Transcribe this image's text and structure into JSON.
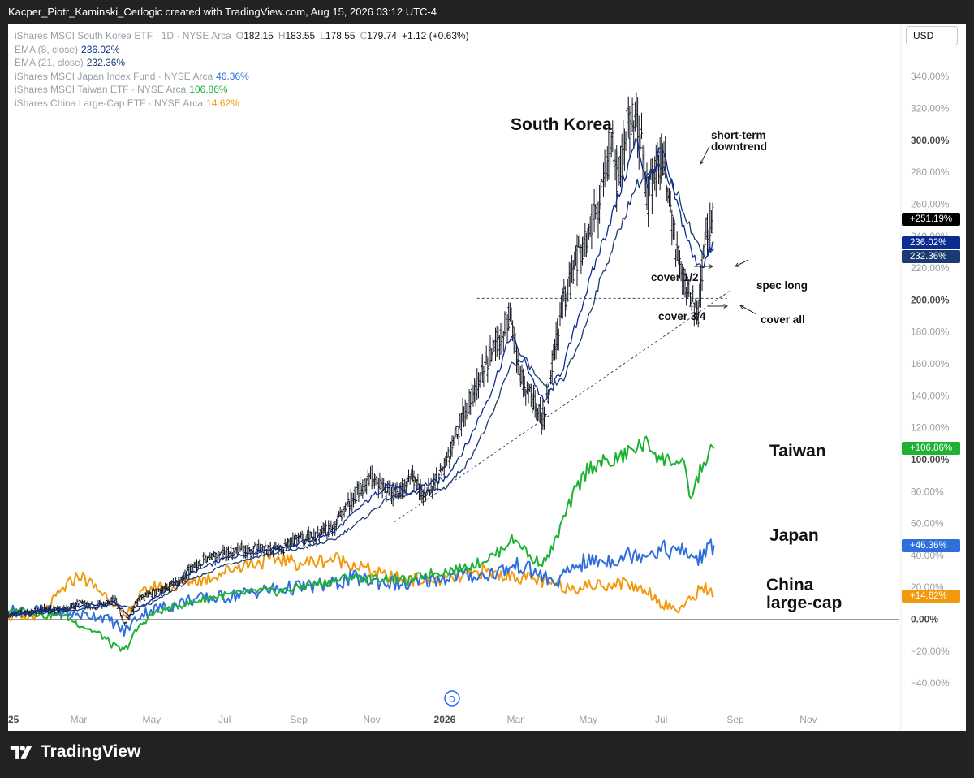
{
  "header": {
    "attribution": "Kacper_Piotr_Kaminski_Cerlogic created with TradingView.com, Aug 15, 2026 03:12 UTC-4"
  },
  "footer": {
    "brand": "TradingView"
  },
  "currency_button": "USD",
  "legend": [
    {
      "label": "iShares MSCI South Korea ETF · 1D · NYSE Arca",
      "ohlc": [
        [
          "O",
          "182.15"
        ],
        [
          "H",
          "183.55"
        ],
        [
          "L",
          "178.55"
        ],
        [
          "C",
          "179.74"
        ]
      ],
      "change": "+1.12 (+0.63%)",
      "color": "#131722"
    },
    {
      "label": "EMA (8, close)",
      "value": "236.02%",
      "color": "#0d2c8f"
    },
    {
      "label": "EMA (21, close)",
      "value": "232.36%",
      "color": "#1b3a73"
    },
    {
      "label": "iShares MSCI Japan Index Fund · NYSE Arca",
      "value": "46.36%",
      "color": "#2f6fdb"
    },
    {
      "label": "iShares MSCI Taiwan ETF · NYSE Arca",
      "value": "106.86%",
      "color": "#1db233"
    },
    {
      "label": "iShares China Large-Cap ETF · NYSE Arca",
      "value": "14.62%",
      "color": "#f29a0f"
    }
  ],
  "annotations": {
    "south_korea": "South Korea",
    "taiwan": "Taiwan",
    "japan": "Japan",
    "china_1": "China",
    "china_2": "large-cap",
    "short_term_1": "short-term",
    "short_term_2": "downtrend",
    "cover_half": "cover 1/2",
    "spec_long": "spec long",
    "cover_three_quarters": "cover 3/4",
    "cover_all": "cover all",
    "event_marker": "D"
  },
  "price_tags": [
    {
      "value": 251.19,
      "label": "+251.19%",
      "color": "#000000"
    },
    {
      "value": 236.02,
      "label": "236.02%",
      "color": "#0d2c8f"
    },
    {
      "value": 232.36,
      "label": "232.36%",
      "color": "#1b3a73"
    },
    {
      "value": 106.86,
      "label": "+106.86%",
      "color": "#1db233"
    },
    {
      "value": 46.36,
      "label": "+46.36%",
      "color": "#2f6fdb"
    },
    {
      "value": 14.62,
      "label": "+14.62%",
      "color": "#f29a0f"
    }
  ],
  "chart_data": {
    "type": "line",
    "y_unit": "% change",
    "ylim": [
      -45,
      350
    ],
    "y_ticks": [
      "340.00%",
      "320.00%",
      "300.00%",
      "280.00%",
      "260.00%",
      "240.00%",
      "220.00%",
      "200.00%",
      "180.00%",
      "160.00%",
      "140.00%",
      "120.00%",
      "100.00%",
      "80.00%",
      "60.00%",
      "40.00%",
      "20.00%",
      "0.00%",
      "−20.00%",
      "−40.00%"
    ],
    "y_tick_values": [
      340,
      320,
      300,
      280,
      260,
      240,
      220,
      200,
      180,
      160,
      140,
      120,
      100,
      80,
      60,
      40,
      20,
      0,
      -20,
      -40
    ],
    "x_ticks": [
      "2025",
      "Mar",
      "May",
      "Jul",
      "Sep",
      "Nov",
      "2026",
      "Mar",
      "May",
      "Jul",
      "Sep",
      "Nov"
    ],
    "x_tick_dates": [
      "2025-01-01",
      "2025-03-01",
      "2025-05-01",
      "2025-07-01",
      "2025-09-01",
      "2025-11-01",
      "2026-01-01",
      "2026-03-01",
      "2026-05-01",
      "2026-07-01",
      "2026-09-01",
      "2026-11-01"
    ],
    "x_tick_first_label": "'25",
    "x_range": [
      "2024-12-27",
      "2026-12-15"
    ],
    "series": [
      {
        "name": "iShares MSCI South Korea ETF",
        "style": "bars",
        "color": "#131722",
        "dates": [
          "2024-12-27",
          "2025-01-15",
          "2025-02-01",
          "2025-02-15",
          "2025-03-01",
          "2025-03-15",
          "2025-04-01",
          "2025-04-08",
          "2025-04-20",
          "2025-05-01",
          "2025-05-20",
          "2025-06-01",
          "2025-06-15",
          "2025-07-01",
          "2025-07-15",
          "2025-08-01",
          "2025-08-15",
          "2025-09-01",
          "2025-09-15",
          "2025-10-01",
          "2025-10-15",
          "2025-11-01",
          "2025-11-15",
          "2025-11-25",
          "2025-12-05",
          "2025-12-15",
          "2026-01-01",
          "2026-01-15",
          "2026-02-01",
          "2026-02-15",
          "2026-02-25",
          "2026-03-05",
          "2026-03-15",
          "2026-03-25",
          "2026-04-01",
          "2026-04-10",
          "2026-04-20",
          "2026-05-01",
          "2026-05-10",
          "2026-05-20",
          "2026-05-25",
          "2026-06-01",
          "2026-06-10",
          "2026-06-20",
          "2026-06-28",
          "2026-07-05",
          "2026-07-12",
          "2026-07-20",
          "2026-07-26",
          "2026-08-01",
          "2026-08-07",
          "2026-08-14"
        ],
        "values": [
          2,
          4,
          6,
          5,
          10,
          8,
          12,
          -3,
          12,
          16,
          22,
          30,
          38,
          41,
          44,
          44,
          43,
          50,
          52,
          58,
          75,
          88,
          78,
          80,
          88,
          76,
          95,
          125,
          152,
          175,
          192,
          150,
          140,
          125,
          160,
          198,
          222,
          240,
          262,
          300,
          275,
          305,
          322,
          265,
          290,
          282,
          238,
          212,
          202,
          190,
          240,
          251.19
        ]
      },
      {
        "name": "EMA (8, close)",
        "color": "#0d2c8f",
        "dates": [
          "2024-12-27",
          "2025-02-01",
          "2025-03-01",
          "2025-04-01",
          "2025-04-12",
          "2025-05-01",
          "2025-06-01",
          "2025-07-01",
          "2025-08-01",
          "2025-09-01",
          "2025-10-01",
          "2025-10-25",
          "2025-11-15",
          "2025-12-01",
          "2025-12-15",
          "2026-01-01",
          "2026-01-20",
          "2026-02-10",
          "2026-02-25",
          "2026-03-10",
          "2026-03-25",
          "2026-04-10",
          "2026-04-25",
          "2026-05-10",
          "2026-05-25",
          "2026-06-10",
          "2026-06-20",
          "2026-07-01",
          "2026-07-15",
          "2026-07-28",
          "2026-08-05",
          "2026-08-14"
        ],
        "values": [
          3,
          5,
          8,
          10,
          2,
          12,
          28,
          38,
          43,
          47,
          55,
          72,
          85,
          78,
          84,
          88,
          110,
          145,
          178,
          160,
          135,
          158,
          195,
          230,
          262,
          300,
          272,
          295,
          258,
          226,
          222,
          236.02
        ]
      },
      {
        "name": "EMA (21, close)",
        "color": "#1b3a73",
        "dates": [
          "2024-12-27",
          "2025-02-01",
          "2025-03-01",
          "2025-04-01",
          "2025-04-15",
          "2025-05-01",
          "2025-06-01",
          "2025-07-01",
          "2025-08-01",
          "2025-09-01",
          "2025-10-01",
          "2025-10-25",
          "2025-11-15",
          "2025-12-01",
          "2025-12-15",
          "2026-01-01",
          "2026-01-20",
          "2026-02-10",
          "2026-02-25",
          "2026-03-10",
          "2026-03-25",
          "2026-04-10",
          "2026-04-25",
          "2026-05-10",
          "2026-05-25",
          "2026-06-10",
          "2026-06-20",
          "2026-07-01",
          "2026-07-15",
          "2026-07-28",
          "2026-08-05",
          "2026-08-14"
        ],
        "values": [
          2,
          4,
          6,
          9,
          7,
          10,
          24,
          34,
          40,
          44,
          50,
          63,
          76,
          78,
          80,
          82,
          98,
          128,
          160,
          162,
          145,
          150,
          176,
          210,
          240,
          272,
          278,
          283,
          266,
          240,
          228,
          232.36
        ]
      },
      {
        "name": "iShares MSCI Taiwan ETF",
        "color": "#1db233",
        "dates": [
          "2024-12-27",
          "2025-01-15",
          "2025-02-01",
          "2025-02-15",
          "2025-03-01",
          "2025-03-20",
          "2025-04-01",
          "2025-04-08",
          "2025-04-20",
          "2025-05-01",
          "2025-05-20",
          "2025-06-01",
          "2025-06-15",
          "2025-07-01",
          "2025-07-15",
          "2025-08-01",
          "2025-08-15",
          "2025-09-01",
          "2025-09-15",
          "2025-10-01",
          "2025-10-15",
          "2025-11-01",
          "2025-11-15",
          "2025-12-01",
          "2025-12-15",
          "2026-01-01",
          "2026-01-15",
          "2026-02-01",
          "2026-02-15",
          "2026-02-25",
          "2026-03-05",
          "2026-03-15",
          "2026-03-25",
          "2026-04-01",
          "2026-04-10",
          "2026-04-20",
          "2026-05-01",
          "2026-05-10",
          "2026-05-20",
          "2026-06-01",
          "2026-06-10",
          "2026-06-20",
          "2026-07-01",
          "2026-07-10",
          "2026-07-20",
          "2026-07-26",
          "2026-08-01",
          "2026-08-07",
          "2026-08-14"
        ],
        "values": [
          3,
          6,
          2,
          3,
          -3,
          -10,
          -18,
          -20,
          -5,
          3,
          8,
          10,
          13,
          15,
          16,
          18,
          17,
          20,
          22,
          24,
          27,
          25,
          26,
          24,
          28,
          30,
          32,
          36,
          42,
          50,
          48,
          37,
          36,
          44,
          62,
          80,
          95,
          98,
          98,
          103,
          108,
          110,
          100,
          100,
          95,
          75,
          90,
          100,
          106.86
        ]
      },
      {
        "name": "iShares MSCI Japan Index Fund",
        "color": "#2f6fdb",
        "dates": [
          "2024-12-27",
          "2025-01-15",
          "2025-02-01",
          "2025-03-01",
          "2025-03-20",
          "2025-04-01",
          "2025-04-08",
          "2025-04-20",
          "2025-05-01",
          "2025-05-20",
          "2025-06-01",
          "2025-07-01",
          "2025-08-01",
          "2025-09-01",
          "2025-10-01",
          "2025-10-15",
          "2025-11-01",
          "2025-11-15",
          "2025-12-01",
          "2025-12-15",
          "2026-01-01",
          "2026-01-15",
          "2026-02-01",
          "2026-02-15",
          "2026-02-25",
          "2026-03-05",
          "2026-03-15",
          "2026-03-25",
          "2026-04-01",
          "2026-04-10",
          "2026-04-20",
          "2026-05-01",
          "2026-05-20",
          "2026-06-01",
          "2026-06-10",
          "2026-06-20",
          "2026-07-01",
          "2026-07-10",
          "2026-07-20",
          "2026-07-26",
          "2026-08-01",
          "2026-08-07",
          "2026-08-14"
        ],
        "values": [
          4,
          6,
          5,
          3,
          2,
          -3,
          -8,
          2,
          6,
          9,
          12,
          14,
          18,
          20,
          22,
          26,
          24,
          23,
          21,
          24,
          26,
          28,
          27,
          30,
          32,
          34,
          30,
          27,
          22,
          26,
          34,
          36,
          37,
          40,
          41,
          42,
          44,
          43,
          42,
          40,
          38,
          42,
          46.36
        ]
      },
      {
        "name": "iShares China Large-Cap ETF",
        "color": "#f29a0f",
        "dates": [
          "2024-12-27",
          "2025-01-15",
          "2025-02-01",
          "2025-02-15",
          "2025-03-01",
          "2025-03-15",
          "2025-04-01",
          "2025-04-08",
          "2025-04-20",
          "2025-05-01",
          "2025-05-20",
          "2025-06-01",
          "2025-06-15",
          "2025-07-01",
          "2025-07-15",
          "2025-08-01",
          "2025-08-15",
          "2025-09-01",
          "2025-09-15",
          "2025-10-01",
          "2025-10-15",
          "2025-11-01",
          "2025-11-15",
          "2025-12-01",
          "2025-12-15",
          "2026-01-01",
          "2026-01-15",
          "2026-02-01",
          "2026-02-15",
          "2026-03-01",
          "2026-03-15",
          "2026-04-01",
          "2026-04-15",
          "2026-05-01",
          "2026-05-20",
          "2026-06-01",
          "2026-06-10",
          "2026-06-20",
          "2026-07-01",
          "2026-07-15",
          "2026-07-26",
          "2026-08-01",
          "2026-08-07",
          "2026-08-14"
        ],
        "values": [
          2,
          0,
          5,
          18,
          28,
          20,
          10,
          0,
          14,
          20,
          20,
          24,
          25,
          30,
          34,
          36,
          38,
          35,
          36,
          38,
          35,
          30,
          26,
          25,
          24,
          25,
          26,
          30,
          28,
          27,
          25,
          22,
          20,
          21,
          22,
          23,
          20,
          18,
          10,
          6,
          12,
          18,
          20,
          14.62
        ]
      }
    ],
    "support_line": {
      "from": {
        "date": "2025-11-20",
        "value": 61
      },
      "to": {
        "date": "2026-08-28",
        "value": 206
      }
    },
    "resistance_line": {
      "from": {
        "date": "2026-01-28",
        "value": 201
      },
      "to": {
        "date": "2026-08-25",
        "value": 201
      }
    },
    "zero_line": 0
  },
  "colors": {
    "panel": "#ffffff",
    "frame": "#222222",
    "axis_text": "#9aa0a6",
    "dark_tick": "#4a4a4a"
  }
}
